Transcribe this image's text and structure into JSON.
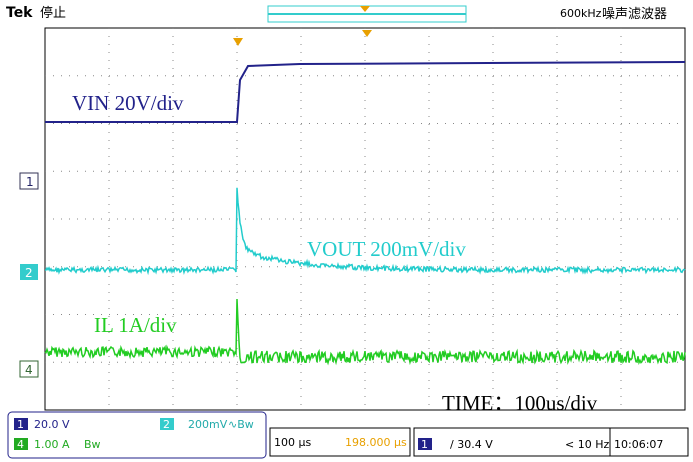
{
  "top_bar": {
    "brand": "Tek",
    "status": "停止",
    "filter_freq": "600kHz",
    "filter_label": "噪声滤波器"
  },
  "annotations": {
    "vin": "VIN 20V/div",
    "vout": "VOUT 200mV/div",
    "il": "IL 1A/div",
    "time": "TIME：100us/div"
  },
  "channel_markers": [
    "1",
    "2",
    "4"
  ],
  "status_panel": {
    "ch1": {
      "number": "1",
      "scale": "20.0 V"
    },
    "ch2": {
      "number": "2",
      "scale": "200mV",
      "bw": "∿Bw"
    },
    "ch4": {
      "number": "4",
      "scale": "1.00 A",
      "bw": "Bw"
    },
    "timebase": "100 µs",
    "position": "198.000 µs",
    "trigger": {
      "source": "1",
      "level": "/ 30.4 V"
    },
    "freq": "< 10 Hz",
    "time": "10:06:07"
  }
}
